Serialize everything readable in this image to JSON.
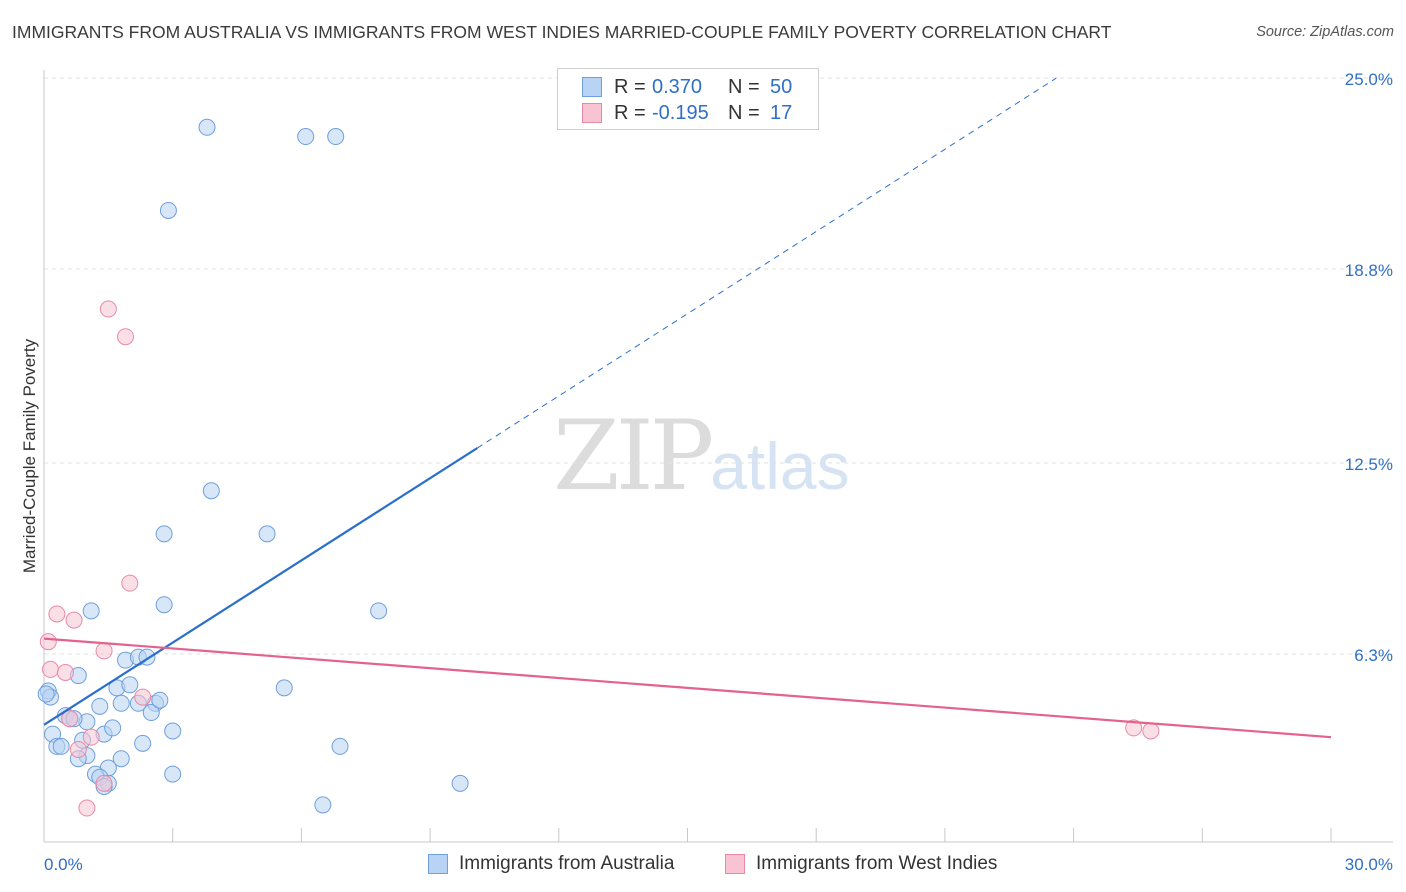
{
  "title": "IMMIGRANTS FROM AUSTRALIA VS IMMIGRANTS FROM WEST INDIES MARRIED-COUPLE FAMILY POVERTY CORRELATION CHART",
  "source": "Source: ZipAtlas.com",
  "watermark": {
    "zip": "ZIP",
    "atlas": "atlas"
  },
  "legend": {
    "rows": [
      {
        "r_label": "R =",
        "r_value": "0.370",
        "n_label": "N =",
        "n_value": "50"
      },
      {
        "r_label": "R =",
        "r_value": "-0.195",
        "n_label": "N =",
        "n_value": "17"
      }
    ]
  },
  "bottom_legend": [
    "Immigrants from Australia",
    "Immigrants from West Indies"
  ],
  "colors": {
    "australia_fill": "#b8d3f3",
    "australia_stroke": "#6f9fdc",
    "australia_line": "#2a6fcc",
    "westindies_fill": "#f8c4d3",
    "westindies_stroke": "#e88aa7",
    "westindies_line": "#e4628e",
    "grid": "#e2e2e2",
    "axis_label": "#2f6fc6"
  },
  "chart_data": {
    "type": "scatter",
    "ylabel": "Married-Couple Family Poverty",
    "xlabel": "",
    "xlim": [
      0,
      30
    ],
    "ylim": [
      0,
      26
    ],
    "x_tick_labels": [
      "0.0%",
      "30.0%"
    ],
    "y_ticks": [
      6.3,
      12.5,
      18.8,
      25.0
    ],
    "y_tick_labels": [
      "6.3%",
      "12.5%",
      "18.8%",
      "25.0%"
    ],
    "series": [
      {
        "name": "Immigrants from Australia",
        "r": 0.37,
        "n": 50,
        "trend": {
          "x0": 0,
          "y0": 4.0,
          "x_solid_end": 10.1,
          "x1": 23.6,
          "y1": 25.0
        },
        "points": [
          [
            3.8,
            23.4
          ],
          [
            6.1,
            23.1
          ],
          [
            6.8,
            23.1
          ],
          [
            2.9,
            20.7
          ],
          [
            3.9,
            11.6
          ],
          [
            2.8,
            10.2
          ],
          [
            5.2,
            10.2
          ],
          [
            2.8,
            7.9
          ],
          [
            1.1,
            7.7
          ],
          [
            7.8,
            7.7
          ],
          [
            1.9,
            6.1
          ],
          [
            2.2,
            6.2
          ],
          [
            0.8,
            5.6
          ],
          [
            1.7,
            5.2
          ],
          [
            2.0,
            5.3
          ],
          [
            5.6,
            5.2
          ],
          [
            0.1,
            5.1
          ],
          [
            0.15,
            4.9
          ],
          [
            1.8,
            4.7
          ],
          [
            2.2,
            4.7
          ],
          [
            2.6,
            4.7
          ],
          [
            1.3,
            4.6
          ],
          [
            2.5,
            4.4
          ],
          [
            0.5,
            4.3
          ],
          [
            0.6,
            4.2
          ],
          [
            1.0,
            4.1
          ],
          [
            3.0,
            3.8
          ],
          [
            1.4,
            3.7
          ],
          [
            0.2,
            3.7
          ],
          [
            0.9,
            3.5
          ],
          [
            2.3,
            3.4
          ],
          [
            0.3,
            3.3
          ],
          [
            0.4,
            3.3
          ],
          [
            6.9,
            3.3
          ],
          [
            1.0,
            3.0
          ],
          [
            1.8,
            2.9
          ],
          [
            0.8,
            2.9
          ],
          [
            1.5,
            2.6
          ],
          [
            3.0,
            2.4
          ],
          [
            1.2,
            2.4
          ],
          [
            1.3,
            2.3
          ],
          [
            1.5,
            2.1
          ],
          [
            9.7,
            2.1
          ],
          [
            1.4,
            2.0
          ],
          [
            6.5,
            1.4
          ],
          [
            0.7,
            4.2
          ],
          [
            2.4,
            6.2
          ],
          [
            0.05,
            5.0
          ],
          [
            2.7,
            4.8
          ],
          [
            1.6,
            3.9
          ]
        ]
      },
      {
        "name": "Immigrants from West Indies",
        "r": -0.195,
        "n": 17,
        "trend": {
          "x0": 0,
          "y0": 6.8,
          "x1": 30,
          "y1": 3.6
        },
        "points": [
          [
            1.5,
            17.5
          ],
          [
            1.9,
            16.6
          ],
          [
            2.0,
            8.6
          ],
          [
            0.3,
            7.6
          ],
          [
            0.7,
            7.4
          ],
          [
            0.1,
            6.7
          ],
          [
            1.4,
            6.4
          ],
          [
            0.15,
            5.8
          ],
          [
            0.5,
            5.7
          ],
          [
            2.3,
            4.9
          ],
          [
            0.6,
            4.2
          ],
          [
            1.1,
            3.6
          ],
          [
            0.8,
            3.2
          ],
          [
            1.4,
            2.1
          ],
          [
            1.0,
            1.3
          ],
          [
            25.4,
            3.9
          ],
          [
            25.8,
            3.8
          ]
        ]
      }
    ]
  }
}
